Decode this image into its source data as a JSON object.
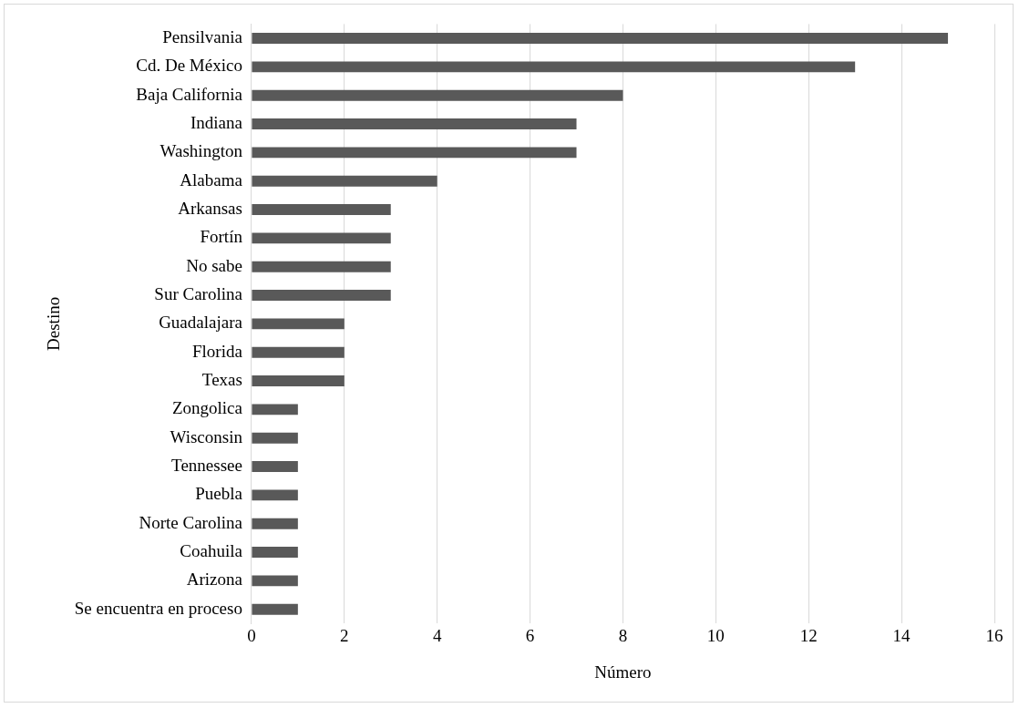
{
  "chart_data": {
    "type": "bar",
    "orientation": "horizontal",
    "xlabel": "Número",
    "ylabel": "Destino",
    "categories": [
      "Pensilvania",
      "Cd. De México",
      "Baja California",
      "Indiana",
      "Washington",
      "Alabama",
      "Arkansas",
      "Fortín",
      "No sabe",
      "Sur Carolina",
      "Guadalajara",
      "Florida",
      "Texas",
      "Zongolica",
      "Wisconsin",
      "Tennessee",
      "Puebla",
      "Norte Carolina",
      "Coahuila",
      "Arizona",
      "Se encuentra en proceso"
    ],
    "values": [
      15,
      13,
      8,
      7,
      7,
      4,
      3,
      3,
      3,
      3,
      2,
      2,
      2,
      1,
      1,
      1,
      1,
      1,
      1,
      1,
      1
    ],
    "color": "#595959",
    "xlim": [
      0,
      16
    ],
    "xticks": [
      0,
      2,
      4,
      6,
      8,
      10,
      12,
      14,
      16
    ],
    "grid": "x",
    "legend": false
  }
}
